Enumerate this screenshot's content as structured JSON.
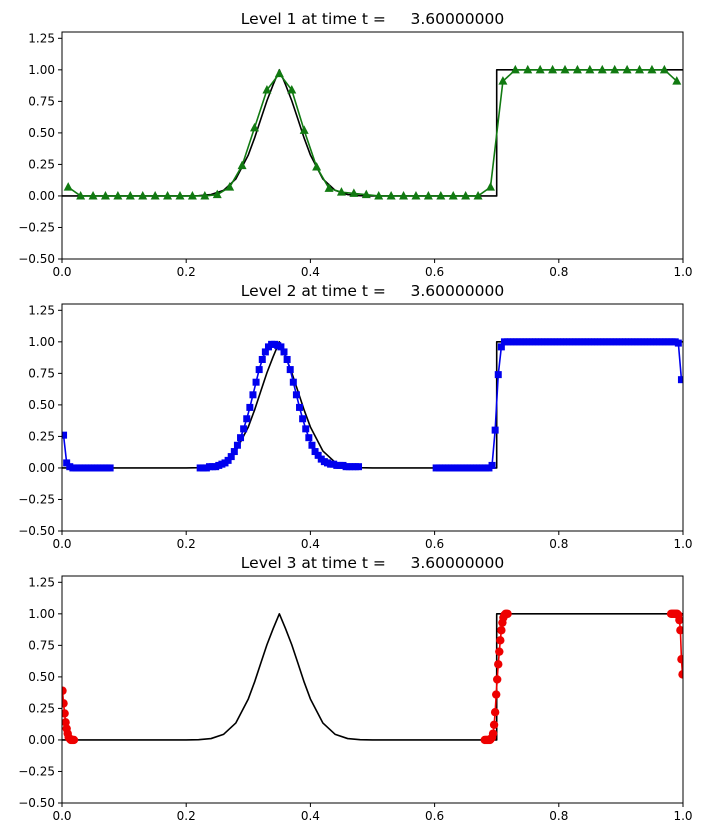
{
  "chart_data": [
    {
      "type": "line",
      "title": "Level 1 at time t =     3.60000000",
      "xlim": [
        0,
        1
      ],
      "ylim": [
        -0.5,
        1.3
      ],
      "xticks": [
        "0.0",
        "0.2",
        "0.4",
        "0.6",
        "0.8",
        "1.0"
      ],
      "yticks": [
        "−0.50",
        "−0.25",
        "0.00",
        "0.25",
        "0.50",
        "0.75",
        "1.00",
        "1.25"
      ],
      "grid": false,
      "series": [
        {
          "role": "exact",
          "color": "#000000",
          "marker": "none",
          "x": [
            0,
            0.2,
            0.22,
            0.24,
            0.26,
            0.28,
            0.3,
            0.31,
            0.32,
            0.33,
            0.34,
            0.35,
            0.36,
            0.37,
            0.38,
            0.39,
            0.4,
            0.42,
            0.44,
            0.46,
            0.48,
            0.5,
            0.7,
            0.7,
            1.0
          ],
          "y": [
            0,
            0,
            0.002,
            0.011,
            0.044,
            0.135,
            0.325,
            0.458,
            0.607,
            0.755,
            0.882,
            1.0,
            0.882,
            0.755,
            0.607,
            0.458,
            0.325,
            0.135,
            0.044,
            0.011,
            0.002,
            0,
            0,
            1,
            1
          ]
        },
        {
          "role": "numerical",
          "color": "#117a11",
          "marker": "triangle",
          "x": [
            0.01,
            0.03,
            0.05,
            0.07,
            0.09,
            0.11,
            0.13,
            0.15,
            0.17,
            0.19,
            0.21,
            0.23,
            0.25,
            0.27,
            0.29,
            0.31,
            0.33,
            0.35,
            0.37,
            0.39,
            0.41,
            0.43,
            0.45,
            0.47,
            0.49,
            0.51,
            0.53,
            0.55,
            0.57,
            0.59,
            0.61,
            0.63,
            0.65,
            0.67,
            0.69,
            0.71,
            0.73,
            0.75,
            0.77,
            0.79,
            0.81,
            0.83,
            0.85,
            0.87,
            0.89,
            0.91,
            0.93,
            0.95,
            0.97,
            0.99
          ],
          "y": [
            0.07,
            0.0,
            0.0,
            0.0,
            0.0,
            0.0,
            0.0,
            0.0,
            0.0,
            0.0,
            0.0,
            0.0,
            0.01,
            0.07,
            0.24,
            0.54,
            0.84,
            0.97,
            0.84,
            0.52,
            0.23,
            0.06,
            0.03,
            0.02,
            0.01,
            0.0,
            0.0,
            0.0,
            0.0,
            0.0,
            0.0,
            0.0,
            0.0,
            0.0,
            0.07,
            0.91,
            1.0,
            1.0,
            1.0,
            1.0,
            1.0,
            1.0,
            1.0,
            1.0,
            1.0,
            1.0,
            1.0,
            1.0,
            1.0,
            0.91
          ]
        }
      ]
    },
    {
      "type": "line",
      "title": "Level 2 at time t =     3.60000000",
      "xlim": [
        0,
        1
      ],
      "ylim": [
        -0.5,
        1.3
      ],
      "xticks": [
        "0.0",
        "0.2",
        "0.4",
        "0.6",
        "0.8",
        "1.0"
      ],
      "yticks": [
        "−0.50",
        "−0.25",
        "0.00",
        "0.25",
        "0.50",
        "0.75",
        "1.00",
        "1.25"
      ],
      "grid": false,
      "series": [
        {
          "role": "exact",
          "color": "#000000",
          "marker": "none",
          "x": [
            0,
            0.2,
            0.22,
            0.24,
            0.26,
            0.28,
            0.3,
            0.31,
            0.32,
            0.33,
            0.34,
            0.35,
            0.36,
            0.37,
            0.38,
            0.39,
            0.4,
            0.42,
            0.44,
            0.46,
            0.48,
            0.5,
            0.7,
            0.7,
            1.0
          ],
          "y": [
            0,
            0,
            0.002,
            0.011,
            0.044,
            0.135,
            0.325,
            0.458,
            0.607,
            0.755,
            0.882,
            1.0,
            0.882,
            0.755,
            0.607,
            0.458,
            0.325,
            0.135,
            0.044,
            0.011,
            0.002,
            0,
            0,
            1,
            1
          ]
        },
        {
          "role": "numerical-segment",
          "color": "#0000ee",
          "marker": "square",
          "x": [
            0.0025,
            0.0075,
            0.0125,
            0.0175,
            0.0225,
            0.0275,
            0.0325,
            0.0375,
            0.0425,
            0.0475,
            0.0525,
            0.0575,
            0.0625,
            0.0675,
            0.0725,
            0.0775
          ],
          "y": [
            0.26,
            0.04,
            0.01,
            0.0,
            0.0,
            0.0,
            0.0,
            0.0,
            0.0,
            0.0,
            0.0,
            0.0,
            0.0,
            0.0,
            0.0,
            0.0
          ]
        },
        {
          "role": "numerical-segment",
          "color": "#0000ee",
          "marker": "square",
          "x": [
            0.2225,
            0.2275,
            0.2325,
            0.2375,
            0.2425,
            0.2475,
            0.2525,
            0.2575,
            0.2625,
            0.2675,
            0.2725,
            0.2775,
            0.2825,
            0.2875,
            0.2925,
            0.2975,
            0.3025,
            0.3075,
            0.3125,
            0.3175,
            0.3225,
            0.3275,
            0.3325,
            0.3375,
            0.3425,
            0.3475,
            0.3525,
            0.3575,
            0.3625,
            0.3675,
            0.3725,
            0.3775,
            0.3825,
            0.3875,
            0.3925,
            0.3975,
            0.4025,
            0.4075,
            0.4125,
            0.4175,
            0.4225,
            0.4275,
            0.4325,
            0.4375,
            0.4425,
            0.4475,
            0.4525,
            0.4575,
            0.4625,
            0.4675,
            0.4725,
            0.4775
          ],
          "y": [
            0.0,
            0.0,
            0.0,
            0.01,
            0.01,
            0.01,
            0.02,
            0.03,
            0.04,
            0.06,
            0.09,
            0.13,
            0.18,
            0.24,
            0.31,
            0.39,
            0.48,
            0.58,
            0.68,
            0.78,
            0.86,
            0.92,
            0.96,
            0.98,
            0.98,
            0.97,
            0.96,
            0.92,
            0.86,
            0.78,
            0.68,
            0.58,
            0.48,
            0.39,
            0.31,
            0.24,
            0.18,
            0.13,
            0.1,
            0.07,
            0.05,
            0.04,
            0.03,
            0.03,
            0.02,
            0.02,
            0.02,
            0.01,
            0.01,
            0.01,
            0.01,
            0.01
          ]
        },
        {
          "role": "numerical-segment",
          "color": "#0000ee",
          "marker": "square",
          "x": [
            0.6025,
            0.6075,
            0.6125,
            0.6175,
            0.6225,
            0.6275,
            0.6325,
            0.6375,
            0.6425,
            0.6475,
            0.6525,
            0.6575,
            0.6625,
            0.6675,
            0.6725,
            0.6775,
            0.6825,
            0.6875,
            0.6925,
            0.6975,
            0.7025,
            0.7075,
            0.7125,
            0.7175,
            0.7225,
            0.7275,
            0.7325,
            0.7375,
            0.7425,
            0.7475,
            0.7525,
            0.7575,
            0.7625,
            0.7675,
            0.7725,
            0.7775,
            0.7825,
            0.7875,
            0.7925,
            0.7975,
            0.8025,
            0.8075,
            0.8125,
            0.8175,
            0.8225,
            0.8275,
            0.8325,
            0.8375,
            0.8425,
            0.8475,
            0.8525,
            0.8575,
            0.8625,
            0.8675,
            0.8725,
            0.8775,
            0.8825,
            0.8875,
            0.8925,
            0.8975,
            0.9025,
            0.9075,
            0.9125,
            0.9175,
            0.9225,
            0.9275,
            0.9325,
            0.9375,
            0.9425,
            0.9475,
            0.9525,
            0.9575,
            0.9625,
            0.9675,
            0.9725,
            0.9775,
            0.9825,
            0.9875,
            0.9925,
            0.9975
          ],
          "y": [
            0.0,
            0.0,
            0.0,
            0.0,
            0.0,
            0.0,
            0.0,
            0.0,
            0.0,
            0.0,
            0.0,
            0.0,
            0.0,
            0.0,
            0.0,
            0.0,
            0.0,
            0.0,
            0.02,
            0.3,
            0.74,
            0.96,
            1.0,
            1.0,
            1.0,
            1.0,
            1.0,
            1.0,
            1.0,
            1.0,
            1.0,
            1.0,
            1.0,
            1.0,
            1.0,
            1.0,
            1.0,
            1.0,
            1.0,
            1.0,
            1.0,
            1.0,
            1.0,
            1.0,
            1.0,
            1.0,
            1.0,
            1.0,
            1.0,
            1.0,
            1.0,
            1.0,
            1.0,
            1.0,
            1.0,
            1.0,
            1.0,
            1.0,
            1.0,
            1.0,
            1.0,
            1.0,
            1.0,
            1.0,
            1.0,
            1.0,
            1.0,
            1.0,
            1.0,
            1.0,
            1.0,
            1.0,
            1.0,
            1.0,
            1.0,
            1.0,
            1.0,
            1.0,
            0.99,
            0.7
          ]
        }
      ]
    },
    {
      "type": "line",
      "title": "Level 3 at time t =     3.60000000",
      "xlim": [
        0,
        1
      ],
      "ylim": [
        -0.5,
        1.3
      ],
      "xticks": [
        "0.0",
        "0.2",
        "0.4",
        "0.6",
        "0.8",
        "1.0"
      ],
      "yticks": [
        "−0.50",
        "−0.25",
        "0.00",
        "0.25",
        "0.50",
        "0.75",
        "1.00",
        "1.25"
      ],
      "grid": false,
      "series": [
        {
          "role": "exact",
          "color": "#000000",
          "marker": "none",
          "x": [
            0,
            0.2,
            0.22,
            0.24,
            0.26,
            0.28,
            0.3,
            0.31,
            0.32,
            0.33,
            0.34,
            0.35,
            0.36,
            0.37,
            0.38,
            0.39,
            0.4,
            0.42,
            0.44,
            0.46,
            0.48,
            0.5,
            0.7,
            0.7,
            1.0
          ],
          "y": [
            0,
            0,
            0.002,
            0.011,
            0.044,
            0.135,
            0.325,
            0.458,
            0.607,
            0.755,
            0.882,
            1.0,
            0.882,
            0.755,
            0.607,
            0.458,
            0.325,
            0.135,
            0.044,
            0.011,
            0.002,
            0,
            0,
            1,
            1
          ]
        },
        {
          "role": "numerical-segment",
          "color": "#ee0000",
          "marker": "circle",
          "x": [
            0.0008,
            0.0025,
            0.0042,
            0.0058,
            0.0075,
            0.0092,
            0.0108,
            0.0125,
            0.0142,
            0.0158,
            0.0175,
            0.0192
          ],
          "y": [
            0.39,
            0.29,
            0.21,
            0.14,
            0.09,
            0.05,
            0.02,
            0.01,
            0.0,
            0.0,
            0.0,
            0.0
          ]
        },
        {
          "role": "numerical-segment",
          "color": "#ee0000",
          "marker": "circle",
          "x": [
            0.6808,
            0.6825,
            0.6842,
            0.6858,
            0.6875,
            0.6892,
            0.6908,
            0.6925,
            0.6942,
            0.6958,
            0.6975,
            0.6992,
            0.7008,
            0.7025,
            0.7042,
            0.7058,
            0.7075,
            0.7092,
            0.7108,
            0.7125,
            0.7142,
            0.7158,
            0.7175
          ],
          "y": [
            0.0,
            0.0,
            0.0,
            0.0,
            0.0,
            0.0,
            0.01,
            0.02,
            0.05,
            0.12,
            0.22,
            0.36,
            0.48,
            0.6,
            0.7,
            0.79,
            0.87,
            0.93,
            0.97,
            0.99,
            1.0,
            1.0,
            1.0
          ]
        },
        {
          "role": "numerical-segment",
          "color": "#ee0000",
          "marker": "circle",
          "x": [
            0.9808,
            0.9825,
            0.9842,
            0.9858,
            0.9875,
            0.9892,
            0.9908,
            0.9925,
            0.9942,
            0.9958,
            0.9975,
            0.9992
          ],
          "y": [
            1.0,
            1.0,
            1.0,
            1.0,
            1.0,
            1.0,
            1.0,
            0.99,
            0.95,
            0.87,
            0.64,
            0.52
          ]
        }
      ]
    }
  ]
}
